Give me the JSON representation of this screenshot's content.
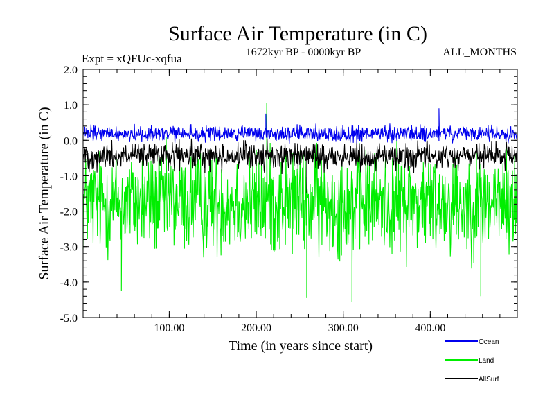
{
  "chart_data": {
    "type": "line",
    "title": "Surface Air Temperature (in C)",
    "experiment": "Expt = xQFUc-xqfua",
    "period": "1672kyr BP - 0000kyr BP",
    "months": "ALL_MONTHS",
    "xlabel": "Time (in years since start)",
    "ylabel": "Surface Air Temperature (in C)",
    "xlim": [
      1,
      500
    ],
    "ylim": [
      -5.0,
      2.0
    ],
    "xticks": [
      100,
      200,
      300,
      400
    ],
    "xtick_labels": [
      "100.00",
      "200.00",
      "300.00",
      "400.00"
    ],
    "yticks": [
      2.0,
      1.0,
      0.0,
      -1.0,
      -2.0,
      -3.0,
      -4.0,
      -5.0
    ],
    "ytick_labels": [
      "2.0",
      "1.0",
      "0.0",
      "-1.0",
      "-2.0",
      "-3.0",
      "-4.0",
      "-5.0"
    ],
    "legend_position": "bottom-right, below plot",
    "series": [
      {
        "name": "Land",
        "color": "#00ee00",
        "mean": -1.75,
        "spread": 1.15,
        "min": -4.55,
        "max": 1.05,
        "peaks": [
          {
            "x": 212,
            "y": 1.05
          }
        ],
        "troughs": [
          {
            "x": 310,
            "y": -4.55
          },
          {
            "x": 258,
            "y": -4.45
          },
          {
            "x": 458,
            "y": -4.4
          },
          {
            "x": 45,
            "y": -4.25
          }
        ]
      },
      {
        "name": "AllSurf",
        "color": "#000000",
        "mean": -0.45,
        "spread": 0.3,
        "min": -1.55,
        "max": 0.05,
        "peaks": [],
        "troughs": [
          {
            "x": 258,
            "y": -1.5
          }
        ]
      },
      {
        "name": "Ocean",
        "color": "#0000ee",
        "mean": 0.18,
        "spread": 0.18,
        "min": -0.15,
        "max": 0.92,
        "peaks": [
          {
            "x": 410,
            "y": 0.9
          },
          {
            "x": 211,
            "y": 0.75
          }
        ],
        "troughs": []
      }
    ],
    "legend": [
      {
        "name": "Ocean",
        "color": "#0000ee"
      },
      {
        "name": "Land",
        "color": "#00ee00"
      },
      {
        "name": "AllSurf",
        "color": "#000000"
      }
    ]
  }
}
